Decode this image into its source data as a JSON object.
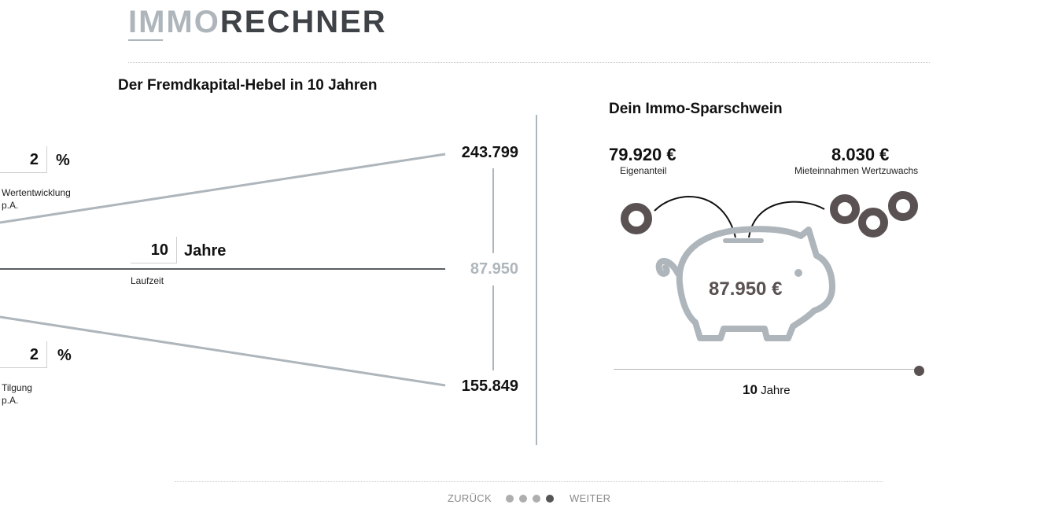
{
  "brand": {
    "logo_light": "IMMO",
    "logo_dark": "RECHNER"
  },
  "left_panel": {
    "title": "Der Fremdkapital-Hebel in 10 Jahren",
    "value_growth": {
      "value": "2",
      "unit": "%",
      "label_line1": "Wertentwicklung",
      "label_line2": "p.A."
    },
    "term": {
      "value": "10",
      "unit": "Jahre",
      "label": "Laufzeit"
    },
    "repayment": {
      "value": "2",
      "unit": "%",
      "label_line1": "Tilgung",
      "label_line2": "p.A."
    },
    "result_top": "243.799",
    "result_mid": "87.950",
    "result_bottom": "155.849"
  },
  "right_panel": {
    "title": "Dein Immo-Sparschwein",
    "equity_amount": "79.920 €",
    "equity_label": "Eigenanteil",
    "income_amount": "8.030 €",
    "income_label": "Mieteinnahmen Wertzuwachs",
    "piggy_total": "87.950 €",
    "slider_level": 1.0,
    "years_value": "10",
    "years_unit": "Jahre"
  },
  "colors": {
    "accent_grey": "#aeb6bc",
    "dark": "#3f4347",
    "coin": "#5a5152"
  },
  "footer": {
    "back_label": "ZURÜCK",
    "next_label": "WEITER",
    "steps_total": 4,
    "steps_active": 4
  }
}
